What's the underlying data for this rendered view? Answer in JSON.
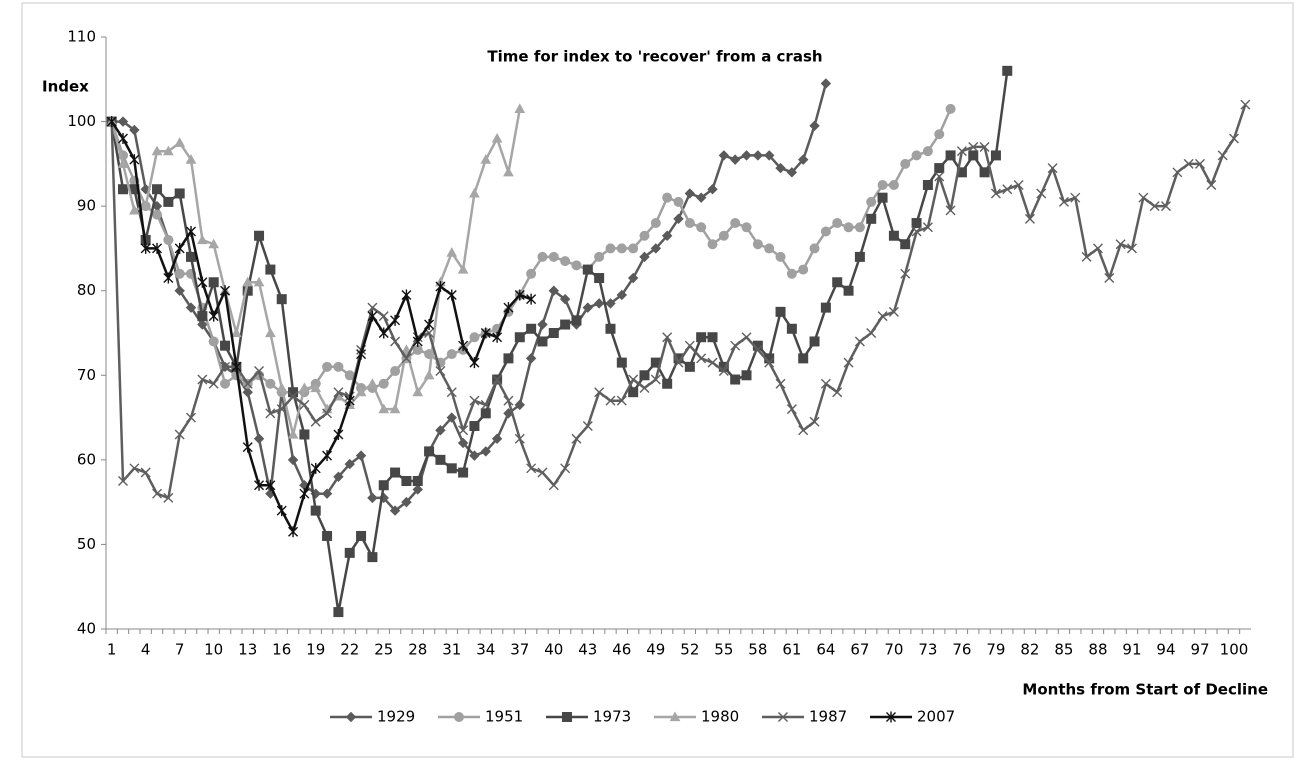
{
  "chart_data": {
    "type": "line",
    "title": "Time for index to 'recover' from a crash",
    "y_label": "Index",
    "x_label": "Months from Start of Decline",
    "categories": [
      1,
      null,
      null,
      4,
      null,
      null,
      7,
      null,
      null,
      10,
      null,
      null,
      13,
      null,
      null,
      16,
      null,
      null,
      19,
      null,
      null,
      22,
      null,
      null,
      25,
      null,
      null,
      28,
      null,
      null,
      31,
      null,
      null,
      34,
      null,
      null,
      37,
      null,
      null,
      40,
      null,
      null,
      43,
      null,
      null,
      46,
      null,
      null,
      49,
      null,
      null,
      52,
      null,
      null,
      55,
      null,
      null,
      58,
      null,
      null,
      61,
      null,
      null,
      64,
      null,
      null,
      67,
      null,
      null,
      70,
      null,
      null,
      73,
      null,
      null,
      76,
      null,
      null,
      79,
      null,
      null,
      82,
      null,
      null,
      85,
      null,
      null,
      88,
      null,
      null,
      91,
      null,
      null,
      94,
      null,
      null,
      97,
      null,
      null,
      100,
      null
    ],
    "ylim": [
      40,
      110
    ],
    "yticks": [
      40,
      50,
      60,
      70,
      80,
      90,
      100,
      110
    ],
    "legend": "bottom",
    "series": [
      {
        "name": "1929",
        "color": "#5a5a5a",
        "marker": "diamond",
        "values": [
          100,
          100,
          99,
          92,
          90,
          86,
          80,
          78,
          76,
          74,
          71,
          70,
          68,
          62.5,
          56,
          68,
          60,
          57,
          56,
          56,
          58,
          59.5,
          60.5,
          55.5,
          55.5,
          54,
          55,
          56.5,
          61,
          63.5,
          65,
          62,
          60.5,
          61,
          62.5,
          65.5,
          66.5,
          72,
          76,
          80,
          79,
          76,
          78,
          78.5,
          78.5,
          79.5,
          81.5,
          84,
          85,
          86.5,
          88.5,
          91.5,
          91,
          92,
          96,
          95.5,
          96,
          96,
          96,
          94.5,
          94,
          95.5,
          99.5,
          104.5,
          null,
          null,
          null,
          null,
          null,
          null,
          null,
          null,
          null,
          null,
          null,
          null,
          null,
          null,
          null,
          null,
          null,
          null,
          null,
          null,
          null,
          null,
          null,
          null,
          null,
          null,
          null,
          null,
          null,
          null,
          null,
          null,
          null,
          null,
          null,
          null,
          null
        ]
      },
      {
        "name": "1951",
        "color": "#a0a0a0",
        "marker": "circle",
        "values": [
          100,
          96,
          93,
          90,
          89,
          86,
          82,
          82,
          78,
          74,
          69,
          70,
          69,
          70,
          69,
          68,
          68,
          68,
          69,
          71,
          71,
          70,
          68.5,
          68.5,
          69,
          70.5,
          72,
          73,
          72.5,
          71.5,
          72.5,
          73,
          74.5,
          75,
          75.5,
          77.5,
          79.5,
          82,
          84,
          84,
          83.5,
          83,
          82.5,
          84,
          85,
          85,
          85,
          86.5,
          88,
          91,
          90.5,
          88,
          87.5,
          85.5,
          86.5,
          88,
          87.5,
          85.5,
          85,
          84,
          82,
          82.5,
          85,
          87,
          88,
          87.5,
          87.5,
          90.5,
          92.5,
          92.5,
          95,
          96,
          96.5,
          98.5,
          101.5,
          null,
          null,
          null,
          null,
          null,
          null,
          null,
          null,
          null,
          null,
          null,
          null,
          null,
          null,
          null,
          null,
          null,
          null,
          null,
          null,
          null,
          null,
          null,
          null,
          null,
          null
        ]
      },
      {
        "name": "1973",
        "color": "#474747",
        "marker": "square",
        "values": [
          100,
          92,
          92,
          86,
          92,
          90.5,
          91.5,
          84,
          77,
          81,
          73.5,
          71,
          80,
          86.5,
          82.5,
          79,
          68,
          63,
          54,
          51,
          42,
          49,
          51,
          48.5,
          57,
          58.5,
          57.5,
          57.5,
          61,
          60,
          59,
          58.5,
          64,
          65.5,
          69.5,
          72,
          74.5,
          75.5,
          74,
          75,
          76,
          76.5,
          82.5,
          81.5,
          75.5,
          71.5,
          68,
          70,
          71.5,
          69,
          72,
          71,
          74.5,
          74.5,
          71,
          69.5,
          70,
          73.5,
          72,
          77.5,
          75.5,
          72,
          74,
          78,
          81,
          80,
          84,
          88.5,
          91,
          86.5,
          85.5,
          88,
          92.5,
          94.5,
          96,
          94,
          96,
          94,
          96,
          106,
          null,
          null,
          null,
          null,
          null,
          null,
          null,
          null,
          null,
          null,
          null,
          null,
          null,
          null,
          null,
          null,
          null,
          null,
          null,
          null,
          null
        ]
      },
      {
        "name": "1980",
        "color": "#a6a6a6",
        "marker": "triangle",
        "values": [
          100,
          95,
          89.5,
          90,
          96.5,
          96.5,
          97.5,
          95.5,
          86,
          85.5,
          80,
          75,
          81,
          81,
          75,
          68.5,
          63,
          68.5,
          68.5,
          66,
          67.5,
          66.5,
          68,
          69,
          66,
          66,
          73,
          68,
          70,
          81,
          84.5,
          82.5,
          91.5,
          95.5,
          98,
          94,
          101.5,
          null,
          null,
          null,
          null,
          null,
          null,
          null,
          null,
          null,
          null,
          null,
          null,
          null,
          null,
          null,
          null,
          null,
          null,
          null,
          null,
          null,
          null,
          null,
          null,
          null,
          null,
          null,
          null,
          null,
          null,
          null,
          null,
          null,
          null,
          null,
          null,
          null,
          null,
          null,
          null,
          null,
          null,
          null,
          null,
          null,
          null,
          null,
          null,
          null,
          null,
          null,
          null,
          null,
          null,
          null,
          null,
          null,
          null,
          null,
          null,
          null,
          null,
          null,
          null
        ]
      },
      {
        "name": "1987",
        "color": "#5e5e5e",
        "marker": "x",
        "values": [
          100,
          57.5,
          59,
          58.5,
          56,
          55.5,
          63,
          65,
          69.5,
          69,
          71,
          71,
          69,
          70.5,
          65.5,
          66,
          67.5,
          66.5,
          64.5,
          65.5,
          68,
          67.5,
          73,
          78,
          77,
          74,
          72,
          74.5,
          75,
          70.5,
          68,
          63.5,
          67,
          66.5,
          69.5,
          67,
          62.5,
          59,
          58.5,
          57,
          59,
          62.5,
          64,
          68,
          67,
          67,
          69.5,
          68.5,
          69.5,
          74.5,
          71.5,
          73.5,
          72,
          71.5,
          70.5,
          73.5,
          74.5,
          73,
          71.5,
          69,
          66,
          63.5,
          64.5,
          69,
          68,
          71.5,
          74,
          75,
          77,
          77.5,
          82,
          87,
          87.5,
          93.5,
          89.5,
          96.5,
          97,
          97,
          91.5,
          92,
          92.5,
          88.5,
          91.5,
          94.5,
          90.5,
          91,
          84,
          85,
          81.5,
          85.5,
          85,
          91,
          90,
          90,
          94,
          95,
          95,
          92.5,
          96,
          98,
          102
        ]
      },
      {
        "name": "2007",
        "color": "#111111",
        "marker": "asterisk",
        "values": [
          100,
          98,
          95.5,
          85,
          85,
          81.5,
          85,
          87,
          81,
          77,
          80,
          71,
          61.5,
          57,
          57,
          54,
          51.5,
          56,
          59,
          60.5,
          63,
          67,
          72.5,
          77,
          75,
          76.5,
          79.5,
          74,
          76,
          80.5,
          79.5,
          73.5,
          71.5,
          75,
          74.5,
          78,
          79.5,
          79,
          null,
          null,
          null,
          null,
          null,
          null,
          null,
          null,
          null,
          null,
          null,
          null,
          null,
          null,
          null,
          null,
          null,
          null,
          null,
          null,
          null,
          null,
          null,
          null,
          null,
          null,
          null,
          null,
          null,
          null,
          null,
          null,
          null,
          null,
          null,
          null,
          null,
          null,
          null,
          null,
          null,
          null,
          null,
          null,
          null,
          null,
          null,
          null,
          null,
          null,
          null,
          null,
          null,
          null,
          null,
          null,
          null,
          null,
          null,
          null,
          null,
          null,
          null
        ]
      }
    ]
  }
}
